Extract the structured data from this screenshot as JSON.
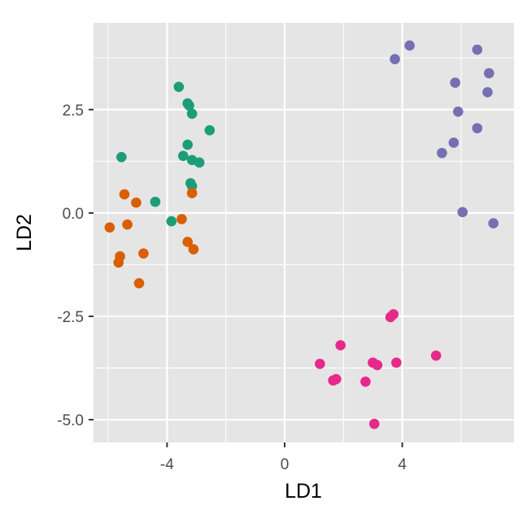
{
  "chart_data": {
    "type": "scatter",
    "title": "",
    "xlabel": "LD1",
    "ylabel": "LD2",
    "xlim": [
      -6.5,
      7.8
    ],
    "ylim": [
      -5.55,
      4.6
    ],
    "x_ticks": [
      -4,
      0,
      4
    ],
    "x_tick_labels": [
      "-4",
      "0",
      "4"
    ],
    "y_ticks": [
      2.5,
      0,
      -2.5,
      -5
    ],
    "y_tick_labels": [
      "2.5",
      "0.0",
      "-2.5",
      "-5.0"
    ],
    "grid": true,
    "legend": "none",
    "panel_color": "#E5E5E5",
    "grid_color": "#FFFFFF",
    "series": [
      {
        "color": "#1B9E77",
        "points": [
          [
            -3.6,
            3.05
          ],
          [
            -3.3,
            2.65
          ],
          [
            -3.25,
            2.6
          ],
          [
            -3.15,
            2.4
          ],
          [
            -2.55,
            2.0
          ],
          [
            -5.55,
            1.35
          ],
          [
            -3.45,
            1.38
          ],
          [
            -3.3,
            1.65
          ],
          [
            -3.15,
            1.28
          ],
          [
            -2.9,
            1.22
          ],
          [
            -3.2,
            0.72
          ],
          [
            -3.15,
            0.65
          ],
          [
            -4.4,
            0.27
          ],
          [
            -3.85,
            -0.2
          ]
        ]
      },
      {
        "color": "#D95F02",
        "points": [
          [
            -5.45,
            0.45
          ],
          [
            -5.05,
            0.25
          ],
          [
            -3.15,
            0.48
          ],
          [
            -5.95,
            -0.35
          ],
          [
            -5.35,
            -0.28
          ],
          [
            -3.5,
            -0.15
          ],
          [
            -5.6,
            -1.05
          ],
          [
            -5.65,
            -1.2
          ],
          [
            -4.8,
            -0.98
          ],
          [
            -3.3,
            -0.7
          ],
          [
            -3.1,
            -0.88
          ],
          [
            -4.95,
            -1.7
          ]
        ]
      },
      {
        "color": "#7570B3",
        "points": [
          [
            4.25,
            4.05
          ],
          [
            6.55,
            3.95
          ],
          [
            3.75,
            3.72
          ],
          [
            6.95,
            3.38
          ],
          [
            5.8,
            3.15
          ],
          [
            6.9,
            2.92
          ],
          [
            5.9,
            2.45
          ],
          [
            6.55,
            2.05
          ],
          [
            5.75,
            1.7
          ],
          [
            5.35,
            1.45
          ],
          [
            6.05,
            0.02
          ],
          [
            7.1,
            -0.25
          ]
        ]
      },
      {
        "color": "#E7298A",
        "points": [
          [
            3.7,
            -2.45
          ],
          [
            3.6,
            -2.52
          ],
          [
            1.9,
            -3.2
          ],
          [
            5.15,
            -3.45
          ],
          [
            1.2,
            -3.65
          ],
          [
            3.0,
            -3.62
          ],
          [
            3.15,
            -3.68
          ],
          [
            3.8,
            -3.62
          ],
          [
            1.75,
            -4.02
          ],
          [
            1.65,
            -4.05
          ],
          [
            2.75,
            -4.08
          ],
          [
            3.05,
            -5.1
          ]
        ]
      }
    ]
  }
}
